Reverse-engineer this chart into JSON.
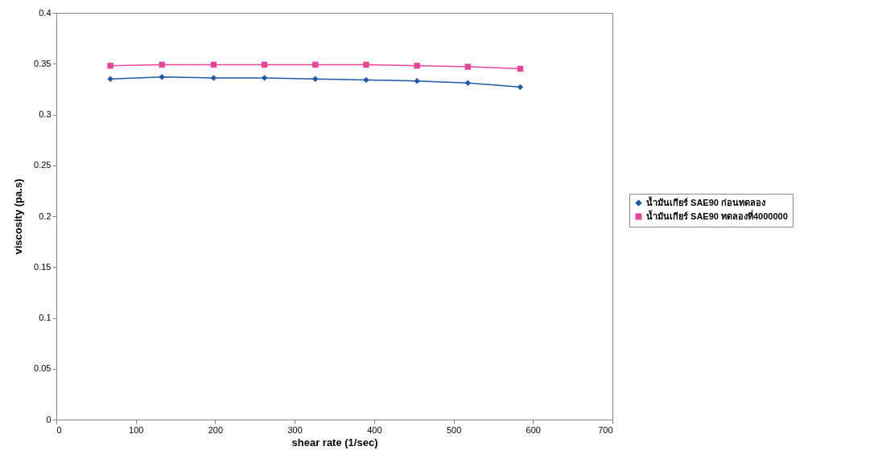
{
  "chart_data": {
    "type": "line",
    "xlabel": "shear rate (1/sec)",
    "ylabel": "viscosity (pa.s)",
    "x": [
      68,
      133,
      198,
      262,
      326,
      390,
      454,
      518,
      584
    ],
    "series": [
      {
        "name": "น้ำมันเกียร์ SAE90 ก่อนทดลอง",
        "color": "#1f5aa8",
        "marker": "diamond",
        "values": [
          0.335,
          0.337,
          0.336,
          0.336,
          0.335,
          0.334,
          0.333,
          0.331,
          0.327
        ]
      },
      {
        "name": "น้ำมันเกียร์ SAE90 ทดลองที่4000000",
        "color": "#e8449a",
        "marker": "square",
        "values": [
          0.348,
          0.349,
          0.349,
          0.349,
          0.349,
          0.349,
          0.348,
          0.347,
          0.345
        ]
      }
    ],
    "xlim": [
      0,
      700
    ],
    "xticks": [
      0,
      100,
      200,
      300,
      400,
      500,
      600,
      700
    ],
    "ylim": [
      0,
      0.4
    ],
    "yticks": [
      0,
      0.05,
      0.1,
      0.15,
      0.2,
      0.25,
      0.3,
      0.35,
      0.4
    ],
    "grid": false,
    "legend": "right"
  }
}
